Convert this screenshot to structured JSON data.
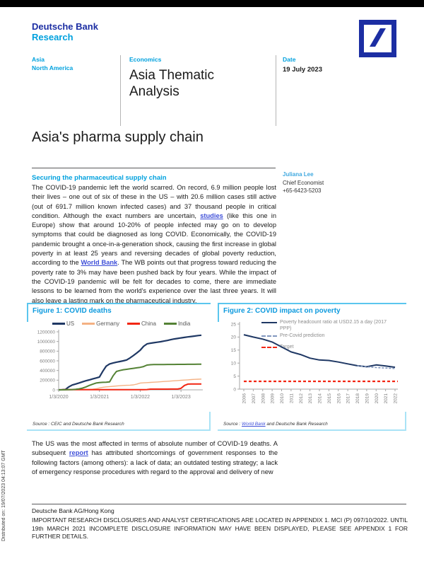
{
  "header": {
    "brand_line1": "Deutsche Bank",
    "brand_line2": "Research",
    "regions": {
      "line1": "Asia",
      "line2": "North America"
    },
    "category": "Economics",
    "publication": "Asia Thematic Analysis",
    "date_label": "Date",
    "date_value": "19 July 2023"
  },
  "title": "Asia's pharma supply chain",
  "author": {
    "name": "Juliana Lee",
    "role": "Chief Economist",
    "phone": "+65-6423-5203"
  },
  "body": {
    "section_heading": "Securing the pharmaceutical supply chain",
    "paragraph1": [
      {
        "t": "The COVID-19 pandemic left the world scarred. On record, 6.9 million people lost their lives – one out of six of these in the US – with 20.6 million cases still active (out of 691.7 million known infected cases) and 37 thousand people in critical condition. Although the exact numbers are uncertain, "
      },
      {
        "t": "studies",
        "link": true
      },
      {
        "t": " (like this one in Europe) show that around 10-20% of people infected may go on to develop symptoms that could be diagnosed as long COVID. Economically, the COVID-19 pandemic brought a once-in-a-generation shock, causing the first increase in global poverty in at least 25 years and reversing decades of global poverty reduction, according to the "
      },
      {
        "t": "World Bank",
        "link": true
      },
      {
        "t": ". The WB points out that progress toward reducing the poverty rate to 3% may have been pushed back by four years. While the impact of the COVID-19 pandemic will be felt for decades to come, there are immediate lessons to be learned from the world's experience over the last three years. It will also leave a lasting mark on the pharmaceutical industry."
      }
    ],
    "paragraph2": [
      {
        "t": "The US was the most affected in terms of absolute number of COVID-19 deaths. A subsequent "
      },
      {
        "t": "report",
        "link": true
      },
      {
        "t": " has attributed shortcomings of government responses to the following factors (among others): a lack of data; an outdated testing strategy; a lack of emergency response procedures with regard to the approval and delivery of new"
      }
    ]
  },
  "figures": {
    "fig1_source": [
      {
        "t": "Source : CEIC and Deutsche Bank Research"
      }
    ],
    "fig2_source": [
      {
        "t": "Source : "
      },
      {
        "t": "World Bank",
        "link": true
      },
      {
        "t": " and Deutsche Bank Research"
      }
    ]
  },
  "footer": {
    "org": "Deutsche Bank AG/Hong Kong",
    "disclosure": "IMPORTANT RESEARCH DISCLOSURES AND ANALYST CERTIFICATIONS ARE LOCATED IN APPENDIX 1. MCI (P) 097/10/2022. UNTIL 19th MARCH 2021 INCOMPLETE DISCLOSURE INFORMATION MAY HAVE BEEN DISPLAYED, PLEASE SEE APPENDIX 1 FOR FURTHER DETAILS."
  },
  "distributed_on": "Distributed on: 19/07/2023 04:13:07 GMT",
  "colors": {
    "db_dark_blue": "#1C2EA3",
    "db_light_blue": "#00A1DE",
    "figure_title_blue": "#0D9ADE",
    "figure_border_top": "#5BC6EE",
    "figure_border_bottom": "#A9E3F6",
    "link_blue": "#3D4ED8",
    "us_line": "#1F3864",
    "germany_line": "#F4B183",
    "china_line": "#F22613",
    "india_line": "#548235",
    "precovid_line": "#8096BE",
    "target_line": "#F22613"
  },
  "chart_data": [
    {
      "id": "fig1",
      "type": "line",
      "title": "Figure 1: COVID deaths",
      "x_range": [
        0,
        42
      ],
      "x_tick_positions": [
        0,
        12,
        24,
        36
      ],
      "x_tick_labels": [
        "1/3/2020",
        "1/3/2021",
        "1/3/2022",
        "1/3/2023"
      ],
      "ylim": [
        0,
        1200000
      ],
      "y_step": 200000,
      "grid": false,
      "legend_position": "top",
      "source": "CEIC and Deutsche Bank Research",
      "series": [
        {
          "name": "US",
          "color": "#1F3864",
          "width": 2.2,
          "values": [
            0,
            2000,
            8000,
            62000,
            100000,
            120000,
            142000,
            165000,
            188000,
            205000,
            225000,
            245000,
            265000,
            385000,
            490000,
            535000,
            555000,
            572000,
            586000,
            600000,
            618000,
            660000,
            710000,
            762000,
            820000,
            900000,
            950000,
            965000,
            975000,
            985000,
            995000,
            1008000,
            1022000,
            1038000,
            1052000,
            1063000,
            1074000,
            1084000,
            1094000,
            1103000,
            1112000,
            1122000,
            1130000
          ]
        },
        {
          "name": "Germany",
          "color": "#F4B183",
          "width": 1.4,
          "values": [
            0,
            0,
            0,
            4000,
            7000,
            8000,
            9000,
            9200,
            9400,
            10000,
            13000,
            22000,
            40000,
            52000,
            62000,
            68000,
            73000,
            79000,
            85000,
            90000,
            93000,
            97000,
            103000,
            118000,
            140000,
            145000,
            150000,
            154000,
            158000,
            162000,
            167000,
            172000,
            177000,
            182000,
            187000,
            192000,
            197000,
            202000,
            207000,
            212000,
            216000,
            220000,
            223000
          ]
        },
        {
          "name": "China",
          "color": "#F22613",
          "width": 2,
          "values": [
            0,
            1000,
            3200,
            4600,
            4600,
            4600,
            4600,
            4600,
            4600,
            4600,
            4600,
            4600,
            4600,
            4600,
            4600,
            4600,
            4600,
            4600,
            4600,
            4600,
            4600,
            4600,
            4600,
            4600,
            4800,
            5000,
            5200,
            14000,
            15000,
            15200,
            15200,
            15300,
            15300,
            15400,
            15500,
            16000,
            31000,
            90000,
            118000,
            120000,
            120500,
            121000,
            121200
          ]
        },
        {
          "name": "India",
          "color": "#548235",
          "width": 2,
          "values": [
            0,
            0,
            1000,
            3000,
            6000,
            12000,
            20000,
            35000,
            60000,
            90000,
            115000,
            140000,
            150000,
            155000,
            158000,
            165000,
            290000,
            380000,
            400000,
            415000,
            425000,
            435000,
            445000,
            455000,
            465000,
            482000,
            512000,
            520000,
            522000,
            523000,
            524000,
            524500,
            525000,
            525500,
            526000,
            526500,
            527000,
            527500,
            528000,
            528500,
            529000,
            529500,
            530000
          ]
        }
      ]
    },
    {
      "id": "fig2",
      "type": "line",
      "title": "Figure 2: COVID impact on poverty",
      "x": [
        2006,
        2007,
        2008,
        2009,
        2010,
        2011,
        2012,
        2013,
        2014,
        2015,
        2016,
        2017,
        2018,
        2019,
        2020,
        2021,
        2022
      ],
      "ylim": [
        0,
        25
      ],
      "y_step": 5,
      "grid": false,
      "legend_position": "top-right",
      "source": "World Bank and Deutsche Bank Research",
      "series": [
        {
          "name": "Poverty headcount ratio at USD2.15 a day (2017 PPP)",
          "color": "#1F3864",
          "width": 2,
          "values": [
            20.9,
            20.0,
            19.2,
            18.1,
            16.2,
            14.3,
            13.3,
            11.9,
            11.2,
            11.0,
            10.4,
            9.7,
            9.0,
            8.6,
            9.3,
            8.9,
            8.4
          ]
        },
        {
          "name": "Pre-Covid prediction",
          "color": "#8096BE",
          "width": 1.6,
          "dash": "3,2",
          "x": [
            2018,
            2019,
            2020,
            2021,
            2022
          ],
          "values": [
            9.0,
            8.6,
            8.3,
            8.1,
            7.9
          ]
        },
        {
          "name": "Target",
          "color": "#F22613",
          "width": 2.2,
          "dash": "4,3",
          "x": [
            2006,
            2022.3
          ],
          "values": [
            3,
            3
          ]
        }
      ]
    }
  ]
}
